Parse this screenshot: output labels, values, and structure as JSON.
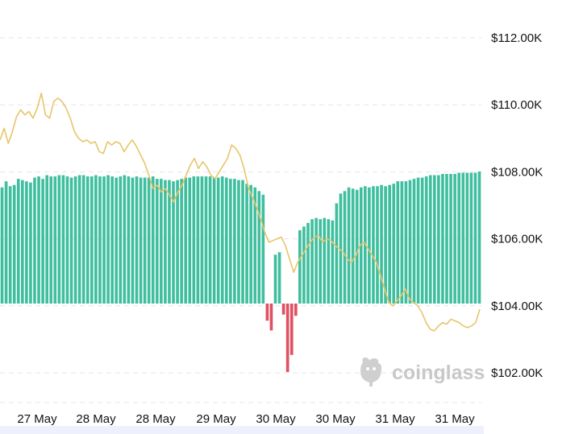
{
  "chart_data": {
    "type": "bar+line",
    "title": "",
    "xlabel": "",
    "ylabel": "",
    "x_ticks": [
      "27 May",
      "28 May",
      "28 May",
      "29 May",
      "30 May",
      "30 May",
      "31 May",
      "31 May"
    ],
    "y_ticks": [
      "$112.00K",
      "$110.00K",
      "$108.00K",
      "$106.00K",
      "$104.00K",
      "$102.00K"
    ],
    "ylim": [
      101000,
      112500
    ],
    "grid": true,
    "series": [
      {
        "kind": "line",
        "color": "#e8c56a",
        "values": [
          108950,
          109300,
          108850,
          109200,
          109650,
          109850,
          109700,
          109800,
          109600,
          109900,
          110350,
          109700,
          109600,
          110100,
          110200,
          110100,
          109900,
          109600,
          109200,
          109000,
          108900,
          108950,
          108850,
          108900,
          108600,
          108550,
          108900,
          108800,
          108900,
          108850,
          108600,
          108800,
          108950,
          108750,
          108500,
          108250,
          107900,
          107500,
          107600,
          107400,
          107500,
          107300,
          107100,
          107400,
          107600,
          107900,
          108200,
          108400,
          108100,
          108300,
          108150,
          107900,
          107800,
          108000,
          108200,
          108400,
          108800,
          108700,
          108500,
          108100,
          107550,
          107250,
          106950,
          106600,
          106200,
          105900,
          105950,
          106000,
          106050,
          105800,
          105400,
          105000,
          105300,
          105500,
          105700,
          105900,
          106050,
          106100,
          105900,
          106000,
          105950,
          105800,
          105700,
          105600,
          105400,
          105300,
          105500,
          105800,
          105900,
          105700,
          105500,
          105300,
          104900,
          104500,
          104100,
          104000,
          104150,
          104300,
          104500,
          104200,
          104100,
          104000,
          103800,
          103500,
          103300,
          103250,
          103400,
          103500,
          103450,
          103600,
          103550,
          103500,
          103400,
          103350,
          103400,
          103500,
          103900
        ]
      },
      {
        "kind": "bar",
        "color_positive": "#3fbf9f",
        "color_negative": "#e05060",
        "values": [
          95,
          100,
          96,
          97,
          102,
          101,
          100,
          99,
          103,
          104,
          102,
          105,
          104,
          104,
          105,
          105,
          104,
          103,
          104,
          105,
          105,
          104,
          104,
          105,
          104,
          104,
          105,
          104,
          103,
          104,
          105,
          104,
          103,
          104,
          103,
          103,
          103,
          104,
          102,
          102,
          101,
          101,
          100,
          101,
          102,
          103,
          103,
          104,
          104,
          104,
          104,
          104,
          103,
          103,
          104,
          103,
          102,
          102,
          101,
          101,
          98,
          97,
          95,
          92,
          89,
          -14,
          -22,
          40,
          42,
          -9,
          -56,
          -42,
          -10,
          60,
          63,
          66,
          69,
          70,
          69,
          70,
          69,
          68,
          82,
          90,
          92,
          95,
          94,
          93,
          95,
          96,
          95,
          96,
          96,
          97,
          96,
          97,
          98,
          100,
          100,
          100,
          101,
          102,
          103,
          103,
          104,
          105,
          105,
          105,
          106,
          106,
          106,
          106,
          107,
          107,
          107,
          107,
          107,
          108
        ]
      }
    ]
  },
  "watermark": {
    "text": "coinglass",
    "icon": "coinglass-logo-icon"
  }
}
